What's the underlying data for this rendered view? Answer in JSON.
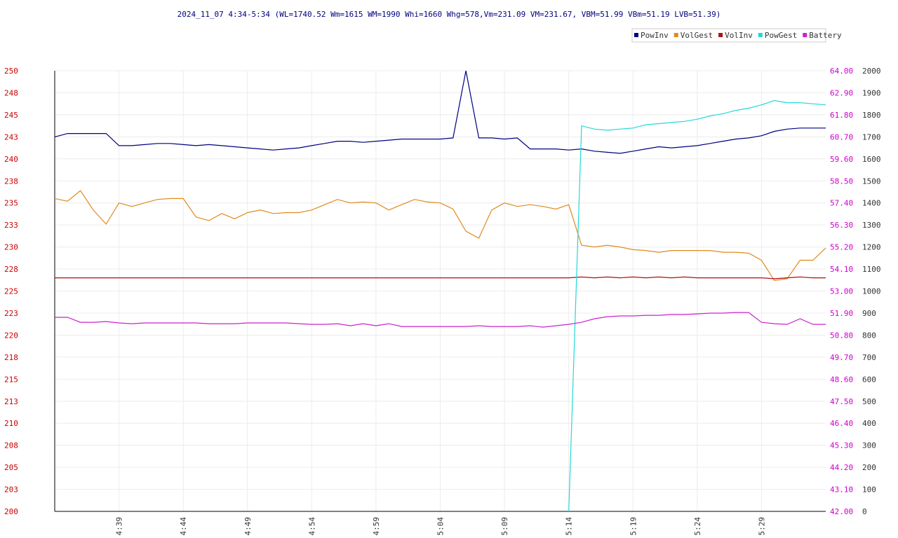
{
  "chart_data": {
    "type": "line",
    "title": "2024_11_07 4:34-5:34 (WL=1740.52 Wm=1615 WM=1990 Whi=1660 Whg=578,Vm=231.09 VM=231.67, VBM=51.99 VBm=51.19 LVB=51.39)",
    "x": [
      0,
      1,
      2,
      3,
      4,
      5,
      6,
      7,
      8,
      9,
      10,
      11,
      12,
      13,
      14,
      15,
      16,
      17,
      18,
      19,
      20,
      21,
      22,
      23,
      24,
      25,
      26,
      27,
      28,
      29,
      30,
      31,
      32,
      33,
      34,
      35,
      36,
      37,
      38,
      39,
      40,
      41,
      42,
      43,
      44,
      45,
      46,
      47,
      48,
      49,
      50,
      51,
      52,
      53,
      54,
      55,
      56,
      57,
      58,
      59,
      60
    ],
    "xlim": [
      0,
      60
    ],
    "xticks": [
      {
        "value": 5,
        "label": "4:39"
      },
      {
        "value": 10,
        "label": "4:44"
      },
      {
        "value": 15,
        "label": "4:49"
      },
      {
        "value": 20,
        "label": "4:54"
      },
      {
        "value": 25,
        "label": "4:59"
      },
      {
        "value": 30,
        "label": "5:04"
      },
      {
        "value": 35,
        "label": "5:09"
      },
      {
        "value": 40,
        "label": "5:14"
      },
      {
        "value": 45,
        "label": "5:19"
      },
      {
        "value": 50,
        "label": "5:24"
      },
      {
        "value": 55,
        "label": "5:29"
      }
    ],
    "ylim": [
      200,
      250
    ],
    "yticks": [
      250,
      {
        "value": 247.5,
        "label": "248"
      },
      245,
      {
        "value": 242.5,
        "label": "243"
      },
      240,
      {
        "value": 237.5,
        "label": "238"
      },
      235,
      {
        "value": 232.5,
        "label": "233"
      },
      230,
      {
        "value": 227.5,
        "label": "228"
      },
      225,
      {
        "value": 222.5,
        "label": "223"
      },
      220,
      {
        "value": 217.5,
        "label": "218"
      },
      215,
      {
        "value": 212.5,
        "label": "213"
      },
      210,
      {
        "value": 207.5,
        "label": "208"
      },
      205,
      {
        "value": 202.5,
        "label": "203"
      },
      200
    ],
    "ycolor": "#cc0000",
    "y2lim": [
      42,
      64
    ],
    "y2ticks": [
      {
        "value": 64,
        "label": "64.00"
      },
      {
        "value": 62.9,
        "label": "62.90"
      },
      {
        "value": 61.8,
        "label": "61.80"
      },
      {
        "value": 60.7,
        "label": "60.70"
      },
      {
        "value": 59.6,
        "label": "59.60"
      },
      {
        "value": 58.5,
        "label": "58.50"
      },
      {
        "value": 57.4,
        "label": "57.40"
      },
      {
        "value": 56.3,
        "label": "56.30"
      },
      {
        "value": 55.2,
        "label": "55.20"
      },
      {
        "value": 54.1,
        "label": "54.10"
      },
      {
        "value": 53,
        "label": "53.00"
      },
      {
        "value": 51.9,
        "label": "51.90"
      },
      {
        "value": 50.8,
        "label": "50.80"
      },
      {
        "value": 49.7,
        "label": "49.70"
      },
      {
        "value": 48.6,
        "label": "48.60"
      },
      {
        "value": 47.5,
        "label": "47.50"
      },
      {
        "value": 46.4,
        "label": "46.40"
      },
      {
        "value": 45.3,
        "label": "45.30"
      },
      {
        "value": 44.2,
        "label": "44.20"
      },
      {
        "value": 43.1,
        "label": "43.10"
      },
      {
        "value": 42,
        "label": "42.00"
      }
    ],
    "y2color": "#cc00cc",
    "y3lim": [
      0,
      2000
    ],
    "y3ticks": [
      2000,
      1900,
      1800,
      1700,
      1600,
      1500,
      1400,
      1300,
      1200,
      1100,
      1000,
      900,
      800,
      700,
      600,
      500,
      400,
      300,
      200,
      100,
      0
    ],
    "y3color": "#333333",
    "grid": true,
    "legend": "top-right",
    "series": [
      {
        "name": "PowInv",
        "color": "#000080",
        "axis": "y3",
        "values": [
          1700,
          1715,
          1715,
          1715,
          1715,
          1660,
          1660,
          1665,
          1670,
          1670,
          1665,
          1660,
          1665,
          1660,
          1655,
          1650,
          1645,
          1640,
          1645,
          1650,
          1660,
          1670,
          1680,
          1680,
          1675,
          1680,
          1685,
          1690,
          1690,
          1690,
          1690,
          1695,
          2000,
          1695,
          1695,
          1690,
          1695,
          1645,
          1645,
          1645,
          1640,
          1645,
          1635,
          1630,
          1625,
          1635,
          1645,
          1655,
          1650,
          1655,
          1660,
          1670,
          1680,
          1690,
          1695,
          1705,
          1725,
          1735,
          1740,
          1740,
          1740
        ]
      },
      {
        "name": "VolGest",
        "color": "#e08a1e",
        "axis": "y",
        "values": [
          235.5,
          235.2,
          236.4,
          234.2,
          232.6,
          235.0,
          234.6,
          235.0,
          235.4,
          235.5,
          235.5,
          233.4,
          233.0,
          233.8,
          233.2,
          233.9,
          234.2,
          233.8,
          233.9,
          233.9,
          234.2,
          234.8,
          235.4,
          235.0,
          235.1,
          235.0,
          234.2,
          234.8,
          235.4,
          235.1,
          235.0,
          234.3,
          231.8,
          231.0,
          234.2,
          235.0,
          234.6,
          234.8,
          234.6,
          234.3,
          234.8,
          230.2,
          230.0,
          230.2,
          230.0,
          229.7,
          229.6,
          229.4,
          229.6,
          229.6,
          229.6,
          229.6,
          229.4,
          229.4,
          229.3,
          228.5,
          226.2,
          226.4,
          228.5,
          228.5,
          229.9
        ]
      },
      {
        "name": "VolInv",
        "color": "#b01010",
        "axis": "y",
        "values": [
          226.5,
          226.5,
          226.5,
          226.5,
          226.5,
          226.5,
          226.5,
          226.5,
          226.5,
          226.5,
          226.5,
          226.5,
          226.5,
          226.5,
          226.5,
          226.5,
          226.5,
          226.5,
          226.5,
          226.5,
          226.5,
          226.5,
          226.5,
          226.5,
          226.5,
          226.5,
          226.5,
          226.5,
          226.5,
          226.5,
          226.5,
          226.5,
          226.5,
          226.5,
          226.5,
          226.5,
          226.5,
          226.5,
          226.5,
          226.5,
          226.5,
          226.6,
          226.5,
          226.6,
          226.5,
          226.6,
          226.5,
          226.6,
          226.5,
          226.6,
          226.5,
          226.5,
          226.5,
          226.5,
          226.5,
          226.5,
          226.4,
          226.5,
          226.6,
          226.5,
          226.5
        ]
      },
      {
        "name": "PowGest",
        "color": "#22d8d8",
        "axis": "y3",
        "values": [
          null,
          null,
          null,
          null,
          null,
          null,
          null,
          null,
          null,
          null,
          null,
          null,
          null,
          null,
          null,
          null,
          null,
          null,
          null,
          null,
          null,
          null,
          null,
          null,
          null,
          null,
          null,
          null,
          null,
          null,
          null,
          null,
          null,
          null,
          null,
          null,
          null,
          null,
          null,
          null,
          0,
          1750,
          1735,
          1730,
          1735,
          1740,
          1755,
          1760,
          1765,
          1770,
          1780,
          1795,
          1805,
          1820,
          1830,
          1845,
          1865,
          1855,
          1855,
          1850,
          1845
        ]
      },
      {
        "name": "Battery",
        "color": "#cc22cc",
        "axis": "y2",
        "values": [
          51.69,
          51.69,
          51.44,
          51.44,
          51.48,
          51.41,
          51.37,
          51.41,
          51.41,
          51.41,
          51.41,
          51.41,
          51.37,
          51.37,
          51.37,
          51.41,
          51.41,
          51.41,
          51.41,
          51.37,
          51.34,
          51.34,
          51.37,
          51.27,
          51.37,
          51.27,
          51.37,
          51.23,
          51.23,
          51.23,
          51.23,
          51.23,
          51.23,
          51.27,
          51.23,
          51.23,
          51.23,
          51.27,
          51.2,
          51.27,
          51.34,
          51.44,
          51.62,
          51.72,
          51.76,
          51.76,
          51.79,
          51.79,
          51.83,
          51.83,
          51.86,
          51.9,
          51.9,
          51.93,
          51.93,
          51.44,
          51.37,
          51.34,
          51.62,
          51.34,
          51.34
        ]
      }
    ]
  }
}
